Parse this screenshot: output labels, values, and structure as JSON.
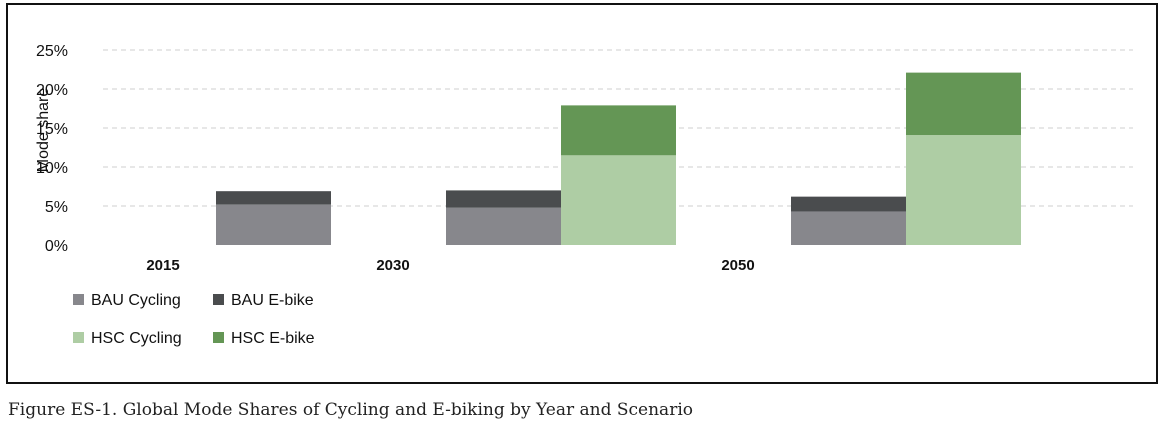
{
  "caption": "Figure ES-1. Global Mode Shares of Cycling and E-biking by Year and Scenario",
  "chart_data": {
    "type": "bar",
    "stacked": true,
    "title": "",
    "xlabel": "",
    "ylabel": "Mode share",
    "ylim": [
      0,
      25
    ],
    "yticks": [
      0,
      5,
      10,
      15,
      20,
      25
    ],
    "ytick_format": "%",
    "grid": true,
    "legend_position": "bottom-left",
    "categories": [
      "2015",
      "2030",
      "2050"
    ],
    "groups": [
      {
        "name": "BAU",
        "stack": [
          {
            "series": "BAU Cycling",
            "values": [
              5.2,
              4.8,
              4.3
            ]
          },
          {
            "series": "BAU E-bike",
            "values": [
              1.7,
              2.2,
              1.9
            ]
          }
        ]
      },
      {
        "name": "HSC",
        "stack": [
          {
            "series": "HSC Cycling",
            "values": [
              0,
              11.5,
              14.1
            ]
          },
          {
            "series": "HSC E-bike",
            "values": [
              0,
              6.4,
              8.0
            ]
          }
        ]
      }
    ],
    "legend": [
      {
        "label": "BAU Cycling",
        "color": "#87878c"
      },
      {
        "label": "BAU E-bike",
        "color": "#4a4c4e"
      },
      {
        "label": "HSC Cycling",
        "color": "#aecda4"
      },
      {
        "label": "HSC E-bike",
        "color": "#649655"
      }
    ],
    "colors": {
      "BAU Cycling": "#87878c",
      "BAU E-bike": "#4a4c4e",
      "HSC Cycling": "#aecda4",
      "HSC E-bike": "#649655"
    }
  }
}
